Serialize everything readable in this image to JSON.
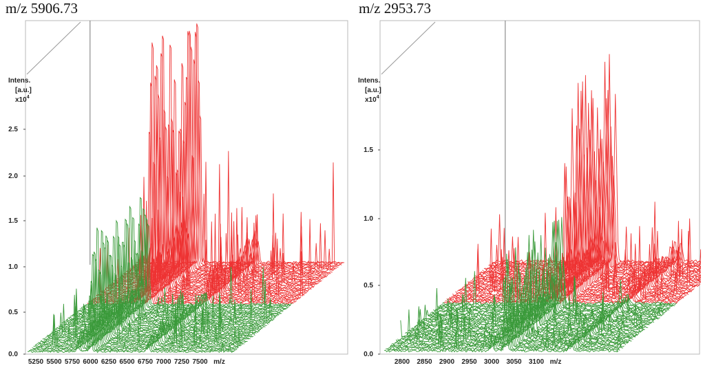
{
  "chart_data": [
    {
      "type": "line",
      "title": "m/z 5906.73",
      "ylabel_lines": [
        "Intens.",
        "[a.u.]",
        "x10"
      ],
      "ylabel_exp": "4",
      "xlabel": "m/z",
      "y_ticks": [
        "0.0",
        "0.5",
        "1.0",
        "1.5",
        "2.0",
        "2.5"
      ],
      "x_ticks": [
        "5250",
        "5500",
        "5750",
        "6000",
        "6250",
        "6500",
        "6750",
        "7000",
        "7250",
        "7500"
      ],
      "xlim": [
        5150,
        7650
      ],
      "ylim": [
        0,
        2.9
      ],
      "peak_mz": 5906.73,
      "series": [
        {
          "color": "#3a9a3a",
          "traces": 40,
          "peak_height": [
            0.6,
            1.3
          ]
        },
        {
          "color": "#ee3333",
          "traces": 35,
          "peak_height": [
            1.2,
            2.9
          ]
        }
      ]
    },
    {
      "type": "line",
      "title": "m/z 2953.73",
      "ylabel_lines": [
        "Intens.",
        "[a.u.]",
        "x10"
      ],
      "ylabel_exp": "4",
      "xlabel": "m/z",
      "y_ticks": [
        "0.0",
        "0.5",
        "1.0",
        "1.5"
      ],
      "x_ticks": [
        "2800",
        "2850",
        "2900",
        "2950",
        "3000",
        "3050",
        "3100"
      ],
      "xlim": [
        2765,
        3130
      ],
      "ylim": [
        0,
        1.95
      ],
      "peak_mz": 2953.73,
      "series": [
        {
          "color": "#3a9a3a",
          "traces": 40,
          "peak_height": [
            0.3,
            0.7
          ]
        },
        {
          "color": "#ee3333",
          "traces": 35,
          "peak_height": [
            0.6,
            1.55
          ]
        }
      ]
    }
  ]
}
